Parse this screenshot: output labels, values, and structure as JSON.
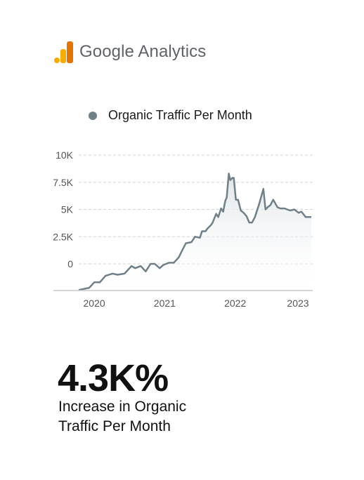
{
  "header": {
    "logo_text": "Google Analytics",
    "logo_colors": [
      "#f9ab00",
      "#f9ab00",
      "#e37400"
    ]
  },
  "chart_data": {
    "type": "area",
    "title": "",
    "legend": [
      "Organic Traffic Per Month"
    ],
    "legend_position": "top",
    "ylim": [
      -1000,
      10500
    ],
    "yticks": [
      0,
      2500,
      5000,
      7500,
      10000
    ],
    "ytick_labels": [
      "0",
      "2.5K",
      "5K",
      "7.5K",
      "10K"
    ],
    "xtick_labels": [
      "2020",
      "2021",
      "2022",
      "2023"
    ],
    "grid": "horizontal dashed",
    "line_color": "#6f8089",
    "series": [
      {
        "name": "Organic Traffic Per Month",
        "x": [
          2019.8,
          2019.95,
          2020.02,
          2020.1,
          2020.18,
          2020.28,
          2020.35,
          2020.45,
          2020.55,
          2020.6,
          2020.68,
          2020.75,
          2020.82,
          2020.88,
          2020.95,
          2021.0,
          2021.08,
          2021.15,
          2021.22,
          2021.25,
          2021.32,
          2021.4,
          2021.45,
          2021.52,
          2021.55,
          2021.6,
          2021.62,
          2021.68,
          2021.7,
          2021.75,
          2021.78,
          2021.82,
          2021.85,
          2021.88,
          2021.9,
          2021.93,
          2021.95,
          2021.98,
          2022.0,
          2022.03,
          2022.06,
          2022.1,
          2022.14,
          2022.18,
          2022.22,
          2022.26,
          2022.3,
          2022.36,
          2022.42,
          2022.45,
          2022.48,
          2022.52,
          2022.56,
          2022.62,
          2022.66,
          2022.72,
          2022.8,
          2022.86,
          2022.92,
          2022.96,
          2023.02,
          2023.1
        ],
        "values": [
          -2400,
          -2200,
          -1700,
          -1700,
          -1100,
          -900,
          -1000,
          -900,
          -200,
          -400,
          -200,
          -700,
          0,
          0,
          -400,
          -100,
          100,
          100,
          600,
          1000,
          1900,
          2000,
          2500,
          2400,
          3000,
          3000,
          3200,
          3600,
          3800,
          4600,
          4300,
          5100,
          4800,
          5800,
          6100,
          8300,
          7700,
          7900,
          7900,
          5900,
          5900,
          4900,
          4700,
          4400,
          3800,
          3800,
          4300,
          5500,
          6900,
          5000,
          5200,
          5400,
          5900,
          5200,
          5100,
          5100,
          4900,
          5000,
          4700,
          4800,
          4300,
          4300
        ]
      }
    ]
  },
  "stats": {
    "headline": "4.3K%",
    "caption_line1": "Increase in Organic",
    "caption_line2": "Traffic Per Month"
  }
}
